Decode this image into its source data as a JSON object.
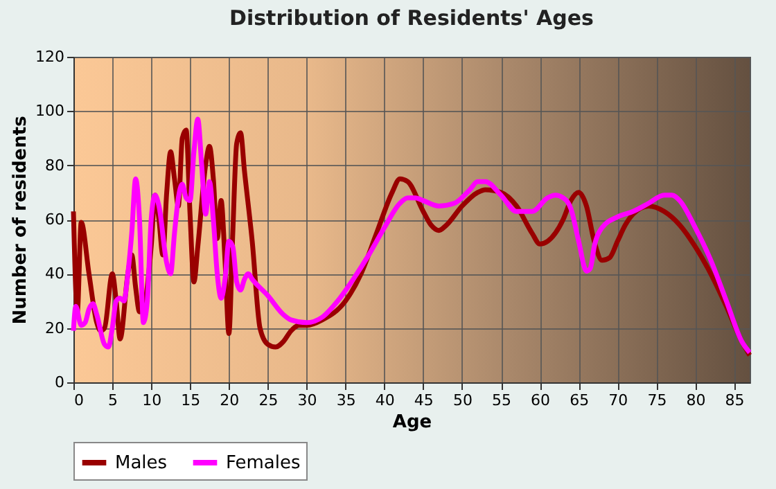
{
  "chart_data": {
    "type": "line",
    "title": "Distribution of Residents' Ages",
    "xlabel": "Age",
    "ylabel": "Number of residents",
    "xlim": [
      0,
      87
    ],
    "xticks": [
      0,
      5,
      10,
      15,
      20,
      25,
      30,
      35,
      40,
      45,
      50,
      55,
      60,
      65,
      70,
      75,
      80,
      85
    ],
    "ylim": [
      0,
      120
    ],
    "yticks": [
      0,
      20,
      40,
      60,
      80,
      100,
      120
    ],
    "grid": true,
    "legend": "bottom",
    "line_style": "solid",
    "marker": "none",
    "series": [
      {
        "name": "Males",
        "color": "#990000",
        "x": [
          0,
          0.5,
          1,
          2,
          3,
          3.5,
          4,
          5,
          5.5,
          6,
          7,
          7.5,
          8,
          8.5,
          9,
          10,
          10.5,
          11,
          11.5,
          12,
          12.5,
          13,
          13.5,
          14,
          14.5,
          15,
          15.5,
          16,
          17,
          17.5,
          18,
          18.5,
          19,
          19.5,
          20,
          20.5,
          21,
          21.5,
          22,
          23,
          24,
          25,
          26,
          27,
          28,
          29,
          30,
          32,
          35,
          37,
          39,
          41,
          42,
          43,
          45,
          46,
          47,
          48,
          50,
          52,
          53,
          55,
          57,
          59,
          60,
          61,
          63,
          64,
          65,
          66,
          67,
          68,
          69,
          70,
          71,
          72,
          74,
          76,
          78,
          80,
          82,
          84,
          86,
          87
        ],
        "values": [
          63,
          26,
          59,
          40,
          22,
          19,
          20,
          40,
          30,
          16,
          40,
          47,
          35,
          26,
          27,
          50,
          69,
          60,
          47,
          70,
          85,
          75,
          65,
          90,
          93,
          62,
          37,
          50,
          80,
          87,
          75,
          53,
          67,
          45,
          18,
          55,
          88,
          92,
          78,
          52,
          20,
          14,
          13,
          15,
          19,
          21,
          21,
          23,
          30,
          40,
          55,
          70,
          75,
          74,
          63,
          58,
          56,
          58,
          65,
          70,
          71,
          70,
          65,
          55,
          51,
          52,
          60,
          67,
          70,
          65,
          52,
          45,
          46,
          52,
          58,
          62,
          65,
          63,
          58,
          50,
          40,
          28,
          15,
          10
        ]
      },
      {
        "name": "Females",
        "color": "#ff00ff",
        "x": [
          0,
          0.3,
          1,
          1.5,
          2,
          2.5,
          3,
          4,
          4.5,
          5,
          5.5,
          6,
          6.5,
          7,
          7.5,
          8,
          8.5,
          9,
          9.5,
          10,
          10.5,
          11,
          12,
          12.5,
          13,
          13.5,
          14,
          14.5,
          15,
          15.5,
          16,
          16.5,
          17,
          17.5,
          18,
          18.5,
          19,
          19.5,
          20,
          20.5,
          21,
          21.5,
          22,
          22.5,
          23,
          25,
          27,
          28,
          30,
          32,
          34,
          36,
          38,
          40,
          42,
          43,
          44,
          45,
          47,
          49,
          51,
          52,
          53,
          55,
          57,
          59,
          61,
          62,
          63,
          64,
          65,
          66,
          66.5,
          67,
          68,
          70,
          72,
          74,
          76,
          77,
          78,
          80,
          82,
          84,
          86,
          87
        ],
        "values": [
          19,
          28,
          21,
          22,
          27,
          29,
          25,
          14,
          13,
          20,
          30,
          31,
          30,
          40,
          55,
          75,
          60,
          22,
          30,
          60,
          69,
          65,
          44,
          40,
          55,
          68,
          73,
          68,
          67,
          85,
          97,
          80,
          62,
          74,
          60,
          40,
          31,
          38,
          52,
          50,
          37,
          34,
          38,
          40,
          38,
          32,
          25,
          23,
          22,
          24,
          30,
          38,
          47,
          57,
          66,
          68,
          68,
          67,
          65,
          66,
          71,
          74,
          74,
          69,
          63,
          63,
          68,
          69,
          68,
          64,
          52,
          41,
          42,
          50,
          57,
          61,
          63,
          66,
          69,
          69,
          67,
          57,
          45,
          30,
          15,
          11
        ]
      }
    ]
  }
}
